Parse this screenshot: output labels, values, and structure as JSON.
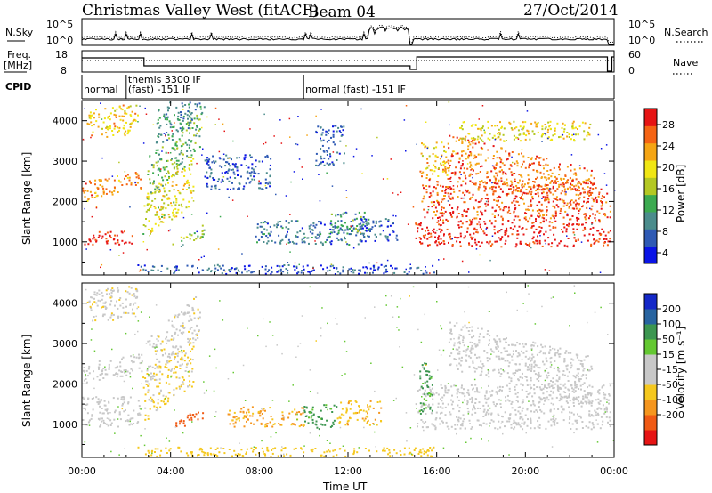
{
  "header": {
    "title": "Christmas Valley West (fitACF)",
    "beam": "Beam 04",
    "date": "27/Oct/2014"
  },
  "noise_panel": {
    "left_label": "N.Sky",
    "left_ticks": [
      "10^5",
      "10^0"
    ],
    "right_label": "N.Search",
    "right_ticks": [
      "10^5",
      "10^0"
    ],
    "right_legend_line": "dotted"
  },
  "freq_panel": {
    "left_label_line1": "Freq.",
    "left_label_line2": "[MHz]",
    "left_ticks": [
      "18",
      "8"
    ],
    "right_label": "Nave",
    "right_ticks": [
      "60",
      "0"
    ],
    "right_legend_line": "dotted"
  },
  "cpid": {
    "label": "CPID",
    "segments": [
      {
        "start_hour": 0.0,
        "end_hour": 2.0,
        "text": "normal",
        "text2": ""
      },
      {
        "start_hour": 2.0,
        "end_hour": 10.0,
        "text": "themis 3300 IF",
        "text2": "(fast) -151 IF"
      },
      {
        "start_hour": 10.0,
        "end_hour": 24.0,
        "text": "normal (fast) -151 IF",
        "text2": ""
      }
    ]
  },
  "chart_data": [
    {
      "type": "heatmap",
      "name": "power",
      "ylabel": "Slant Range [km]",
      "yticks": [
        "1000",
        "2000",
        "3000",
        "4000"
      ],
      "ylim": [
        180,
        4500
      ],
      "xlim": [
        0,
        24
      ],
      "colorbar_label": "Power [dB]",
      "colorbar_ticks": [
        "4",
        "8",
        "12",
        "16",
        "20",
        "24",
        "28"
      ],
      "colorbar_range": [
        0,
        30
      ],
      "colorbar_colors": [
        "#0a14e6",
        "#2f5ab4",
        "#4b8c8c",
        "#3caa50",
        "#b4c823",
        "#f0e614",
        "#f5a514",
        "#f56414",
        "#e61414"
      ],
      "colorbar_ylim": [
        2,
        31
      ],
      "features": [
        {
          "t0": 0.0,
          "t1": 2.5,
          "r0": 950,
          "r1": 1280,
          "dr": 0,
          "value": 28
        },
        {
          "t0": 0.0,
          "t1": 2.7,
          "r0": 2000,
          "r1": 2500,
          "dr": 300,
          "value": 23
        },
        {
          "t0": 0.2,
          "t1": 2.5,
          "r0": 3500,
          "r1": 4300,
          "dr": 200,
          "value": 20
        },
        {
          "t0": 2.7,
          "t1": 5.0,
          "r0": 1050,
          "r1": 2200,
          "dr": 900,
          "value": 17
        },
        {
          "t0": 2.9,
          "t1": 5.3,
          "r0": 2000,
          "r1": 3100,
          "dr": 1200,
          "value": 12
        },
        {
          "t0": 3.3,
          "t1": 5.5,
          "r0": 3400,
          "r1": 4300,
          "dr": 600,
          "value": 9
        },
        {
          "t0": 4.0,
          "t1": 5.5,
          "r0": 750,
          "r1": 1050,
          "dr": 400,
          "value": 13
        },
        {
          "t0": 5.5,
          "t1": 8.5,
          "r0": 2300,
          "r1": 3200,
          "dr": 0,
          "value": 5
        },
        {
          "t0": 7.8,
          "t1": 12.8,
          "r0": 950,
          "r1": 1550,
          "dr": 0,
          "value": 7
        },
        {
          "t0": 11.2,
          "t1": 13.0,
          "r0": 1200,
          "r1": 1750,
          "dr": 0,
          "value": 10
        },
        {
          "t0": 10.5,
          "t1": 11.8,
          "r0": 2900,
          "r1": 3900,
          "dr": 0,
          "value": 6
        },
        {
          "t0": 12.5,
          "t1": 14.2,
          "r0": 1000,
          "r1": 1600,
          "dr": 0,
          "value": 5
        },
        {
          "t0": 15.0,
          "t1": 23.8,
          "r0": 900,
          "r1": 1500,
          "dr": 0,
          "value": 28
        },
        {
          "t0": 15.3,
          "t1": 23.8,
          "r0": 1500,
          "r1": 2600,
          "dr": 0,
          "value": 26
        },
        {
          "t0": 15.2,
          "t1": 16.5,
          "r0": 2600,
          "r1": 3500,
          "dr": 0,
          "value": 20
        },
        {
          "t0": 16.5,
          "t1": 23.0,
          "r0": 2700,
          "r1": 3700,
          "dr": -900,
          "value": 24
        },
        {
          "t0": 17.0,
          "t1": 23.0,
          "r0": 3500,
          "r1": 4000,
          "dr": 0,
          "value": 18
        },
        {
          "t0": 2.5,
          "t1": 16.0,
          "r0": 200,
          "r1": 450,
          "dr": 0,
          "value": 5
        }
      ]
    },
    {
      "type": "heatmap",
      "name": "velocity",
      "ylabel": "Slant Range [km]",
      "yticks": [
        "1000",
        "2000",
        "3000",
        "4000"
      ],
      "ylim": [
        180,
        4500
      ],
      "xlim": [
        0,
        24
      ],
      "xlabel": "Time UT",
      "xticks": [
        "00:00",
        "04:00",
        "08:00",
        "12:00",
        "16:00",
        "20:00",
        "00:00"
      ],
      "colorbar_label": "Velocity [m s⁻¹]",
      "colorbar_ticks": [
        "200",
        "100",
        "50",
        "15",
        "-15",
        "-50",
        "-100",
        "-200"
      ],
      "colorbar_colors": [
        "#e61414",
        "#f05a14",
        "#f5961e",
        "#f5c81e",
        "#c8c8c8",
        "#c8c8c8",
        "#64c832",
        "#3c9650",
        "#2864a0",
        "#1428c8"
      ],
      "features": [
        {
          "t0": 0.0,
          "t1": 2.6,
          "r0": 950,
          "r1": 1700,
          "dr": 0,
          "value": 0
        },
        {
          "t0": 0.0,
          "t1": 2.7,
          "r0": 2000,
          "r1": 2500,
          "dr": 300,
          "value": 0
        },
        {
          "t0": 0.2,
          "t1": 2.5,
          "r0": 3500,
          "r1": 4300,
          "dr": 200,
          "value": -5
        },
        {
          "t0": 2.7,
          "t1": 5.0,
          "r0": 1050,
          "r1": 2200,
          "dr": 900,
          "value": -20
        },
        {
          "t0": 2.9,
          "t1": 5.3,
          "r0": 2000,
          "r1": 3100,
          "dr": 1200,
          "value": -5
        },
        {
          "t0": 4.0,
          "t1": 5.5,
          "r0": 750,
          "r1": 1050,
          "dr": 400,
          "value": -150
        },
        {
          "t0": 6.5,
          "t1": 10.0,
          "r0": 950,
          "r1": 1450,
          "dr": 0,
          "value": -60
        },
        {
          "t0": 10.0,
          "t1": 11.5,
          "r0": 900,
          "r1": 1500,
          "dr": 0,
          "value": 60
        },
        {
          "t0": 11.5,
          "t1": 13.5,
          "r0": 1000,
          "r1": 1600,
          "dr": 0,
          "value": -40
        },
        {
          "t0": 15.0,
          "t1": 23.8,
          "r0": 900,
          "r1": 2000,
          "dr": 0,
          "value": 0
        },
        {
          "t0": 15.2,
          "t1": 15.8,
          "r0": 1200,
          "r1": 2600,
          "dr": 0,
          "value": 60
        },
        {
          "t0": 16.5,
          "t1": 23.0,
          "r0": 2400,
          "r1": 3600,
          "dr": -900,
          "value": 0
        },
        {
          "t0": 2.5,
          "t1": 16.0,
          "r0": 200,
          "r1": 450,
          "dr": 0,
          "value": -30
        }
      ]
    }
  ]
}
